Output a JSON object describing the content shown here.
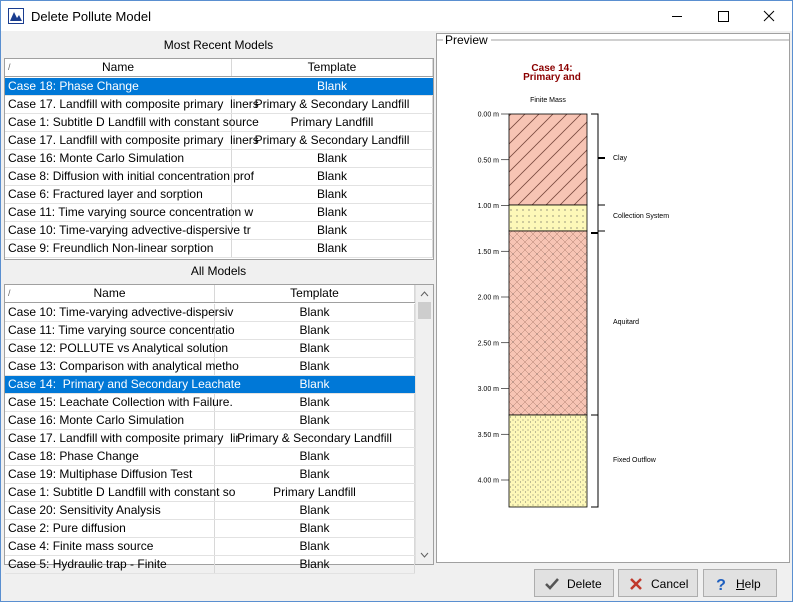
{
  "window": {
    "title": "Delete Pollute Model"
  },
  "recent": {
    "title": "Most Recent Models",
    "columns": [
      "/",
      "Name",
      "Template"
    ],
    "rows": [
      [
        "Case 18: Phase Change",
        "Blank"
      ],
      [
        "Case 17. Landfill with composite primary  liners",
        "Primary & Secondary Landfill"
      ],
      [
        "Case 1: Subtitle D Landfill with constant source",
        "Primary Landfill"
      ],
      [
        "Case 17. Landfill with composite primary  liners",
        "Primary & Secondary Landfill"
      ],
      [
        "Case 16: Monte Carlo Simulation",
        "Blank"
      ],
      [
        "Case 8: Diffusion with initial concentration prof",
        "Blank"
      ],
      [
        "Case 6: Fractured layer and sorption",
        "Blank"
      ],
      [
        "Case 11: Time varying source concentration w",
        "Blank"
      ],
      [
        "Case 10: Time-varying advective-dispersive tr",
        "Blank"
      ],
      [
        "Case 9: Freundlich Non-linear sorption",
        "Blank"
      ]
    ]
  },
  "all": {
    "title": "All Models",
    "columns": [
      "/",
      "Name",
      "Template"
    ],
    "rows": [
      [
        "Case 10: Time-varying advective-dispersiv",
        "Blank"
      ],
      [
        "Case 11: Time varying source concentratio",
        "Blank"
      ],
      [
        "Case 12: POLLUTE vs Analytical solution",
        "Blank"
      ],
      [
        "Case 13: Comparison with analytical metho",
        "Blank"
      ],
      [
        "Case 14:  Primary and Secondary Leachate",
        "Blank"
      ],
      [
        "Case 15: Leachate Collection with Failure.",
        "Blank"
      ],
      [
        "Case 16: Monte Carlo Simulation",
        "Blank"
      ],
      [
        "Case 17. Landfill with composite primary  lir",
        "Primary & Secondary Landfill"
      ],
      [
        "Case 18: Phase Change",
        "Blank"
      ],
      [
        "Case 19: Multiphase Diffusion Test",
        "Blank"
      ],
      [
        "Case 1: Subtitle D Landfill with constant so",
        "Primary Landfill"
      ],
      [
        "Case 20: Sensitivity Analysis",
        "Blank"
      ],
      [
        "Case 2: Pure diffusion",
        "Blank"
      ],
      [
        "Case 4: Finite mass source",
        "Blank"
      ],
      [
        "Case 5: Hydraulic trap - Finite",
        "Blank"
      ]
    ]
  },
  "preview": {
    "label": "Preview",
    "title_lines": [
      "Case 14:",
      "Primary and"
    ],
    "subtitle": "Finite Mass",
    "depth_labels": [
      "0.00 m",
      "0.50 m",
      "1.00 m",
      "1.50 m",
      "2.00 m",
      "2.50 m",
      "3.00 m",
      "3.50 m",
      "4.00 m"
    ],
    "layers": [
      "Clay",
      "Collection System",
      "Aquitard",
      "Fixed Outflow"
    ]
  },
  "buttons": {
    "delete": "Delete",
    "cancel": "Cancel",
    "help": "Help"
  }
}
